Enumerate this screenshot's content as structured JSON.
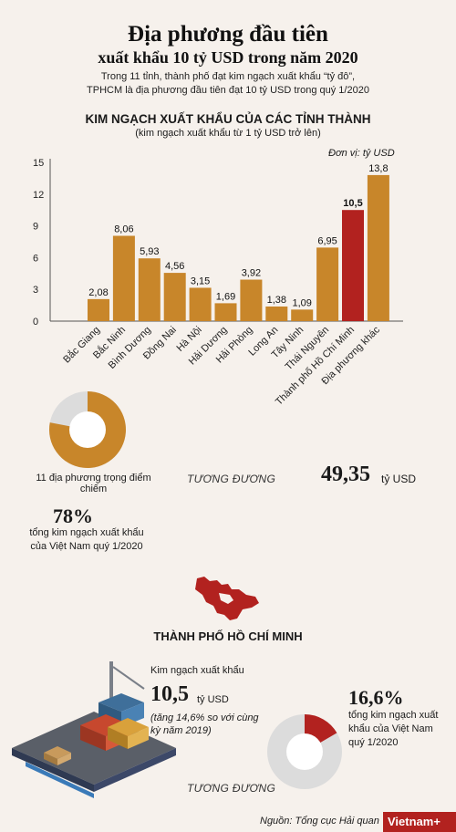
{
  "header": {
    "title_line1": "Địa phương đầu tiên",
    "title_line2": "xuất khẩu 10 tỷ USD trong năm 2020",
    "desc_line1": "Trong 11 tỉnh, thành phố đạt kim ngạch xuất khẩu “tỷ đô”,",
    "desc_line2": "TPHCM là địa phương đầu tiên đạt 10 tỷ USD trong quý 1/2020"
  },
  "chart_data": {
    "type": "bar",
    "title": "KIM NGẠCH XUẤT KHẨU CỦA CÁC TỈNH THÀNH",
    "subtitle": "(kim ngạch xuất khẩu từ 1 tỷ USD trở lên)",
    "unit": "Đơn vị: tỷ USD",
    "categories": [
      "Bắc Giang",
      "Bắc Ninh",
      "Bình Dương",
      "Đồng Nai",
      "Hà Nội",
      "Hải Dương",
      "Hải Phòng",
      "Long An",
      "Tây Ninh",
      "Thái Nguyên",
      "Thành phố Hồ Chí Minh",
      "Địa phương khác"
    ],
    "values": [
      2.08,
      8.06,
      5.93,
      4.56,
      3.15,
      1.69,
      3.92,
      1.38,
      1.09,
      6.95,
      10.5,
      13.8
    ],
    "value_labels": [
      "2,08",
      "8,06",
      "5,93",
      "4,56",
      "3,15",
      "1,69",
      "3,92",
      "1,38",
      "1,09",
      "6,95",
      "10,5",
      "13,8"
    ],
    "highlight_index": 10,
    "yticks": [
      0,
      3,
      6,
      9,
      12,
      15
    ],
    "ylim": [
      0,
      15
    ],
    "colors": {
      "bar": "#c8862a",
      "highlight": "#b2221f"
    }
  },
  "summary": {
    "pie_share": 0.78,
    "caption": "11 địa phương trọng điểm chiếm",
    "equiv": "TƯƠNG ĐƯƠNG",
    "total_value": "49,35",
    "total_unit": "tỷ USD",
    "percent": "78%",
    "percent_desc": "tổng kim ngạch xuất khẩu của Việt Nam quý 1/2020"
  },
  "hcm": {
    "title": "THÀNH PHỐ HỒ CHÍ MINH",
    "export_label": "Kim ngạch xuất khẩu",
    "value": "10,5",
    "value_unit": "tỷ USD",
    "growth": "(tăng 14,6% so với cùng kỳ năm 2019)",
    "percent": "16,6%",
    "percent_desc": "tổng kim ngạch xuất khẩu của Việt Nam quý 1/2020",
    "pie_share": 0.166,
    "equiv": "TƯƠNG ĐƯƠNG"
  },
  "footer": {
    "source": "Nguồn: Tổng cục Hải quan",
    "logo": "Vietnam+"
  }
}
